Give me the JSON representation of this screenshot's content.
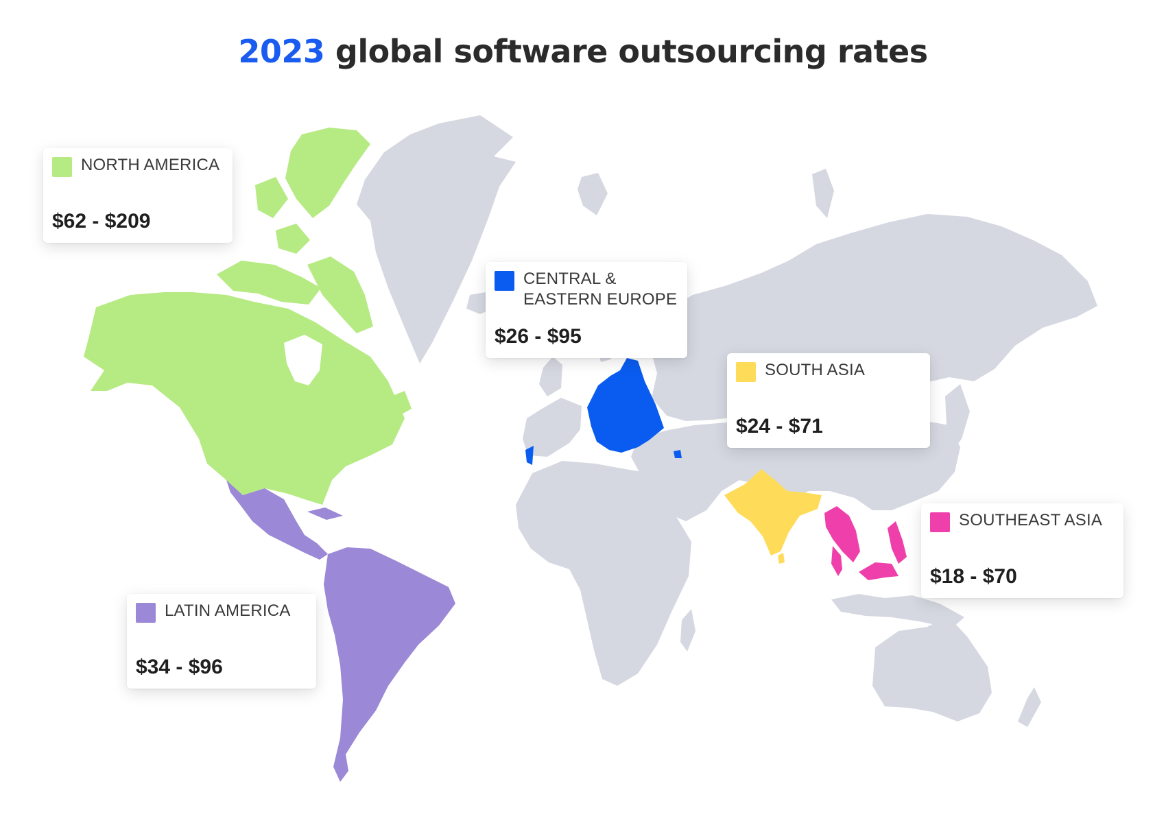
{
  "title": {
    "year": "2023",
    "rest": "global software outsourcing rates"
  },
  "colors": {
    "year_accent": "#1a5cf0",
    "land_base": "#d5d8e1",
    "north_america": "#b6ea82",
    "latin_america": "#9b88d6",
    "central_eastern_europe": "#0a5cf0",
    "south_asia": "#fedc5a",
    "southeast_asia": "#ee3fab"
  },
  "regions": [
    {
      "key": "north_america",
      "label": "NORTH AMERICA",
      "rate": "$62 - $209",
      "color": "#b6ea82"
    },
    {
      "key": "central_eastern_europe",
      "label": "CENTRAL &\nEASTERN EUROPE",
      "rate": "$26 - $95",
      "color": "#0a5cf0"
    },
    {
      "key": "south_asia",
      "label": "SOUTH ASIA",
      "rate": "$24 - $71",
      "color": "#fedc5a"
    },
    {
      "key": "southeast_asia",
      "label": "SOUTHEAST ASIA",
      "rate": "$18 - $70",
      "color": "#ee3fab"
    },
    {
      "key": "latin_america",
      "label": "LATIN AMERICA",
      "rate": "$34 - $96",
      "color": "#9b88d6"
    }
  ]
}
